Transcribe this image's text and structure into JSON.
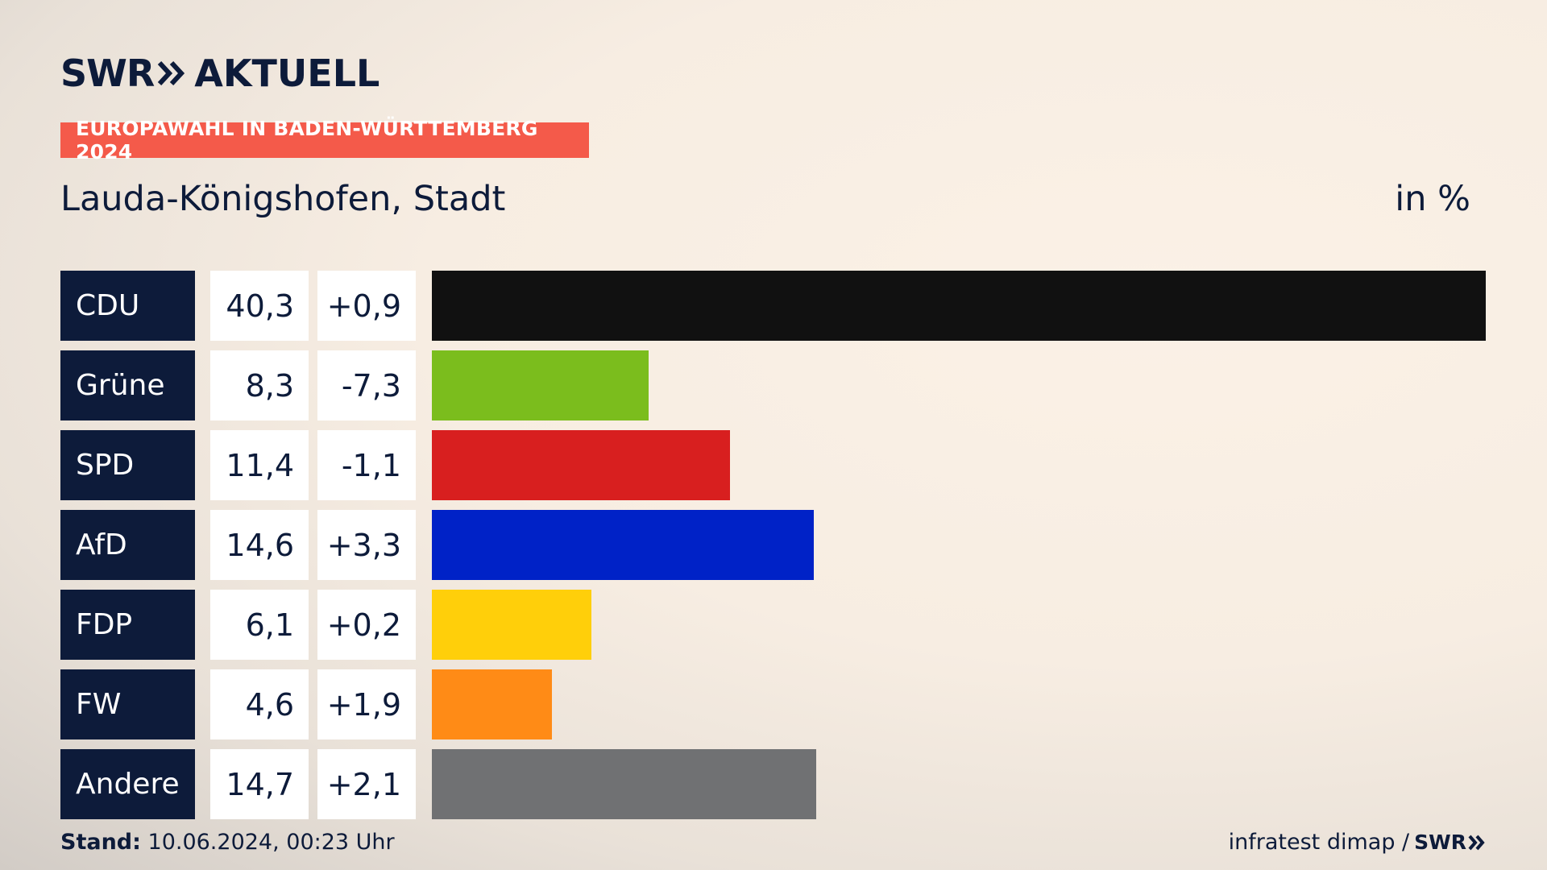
{
  "brand": {
    "swr": "SWR",
    "aktuell": "AKTUELL"
  },
  "tag": "EUROPAWAHL IN BADEN-WÜRTTEMBERG 2024",
  "region": "Lauda-Königshofen, Stadt",
  "unit": "in %",
  "footer": {
    "stand_label": "Stand:",
    "stand_value": "10.06.2024, 00:23 Uhr",
    "source": "infratest dimap /",
    "source_brand": "SWR"
  },
  "chart_data": {
    "type": "bar",
    "orientation": "horizontal",
    "categories": [
      "CDU",
      "Grüne",
      "SPD",
      "AfD",
      "FDP",
      "FW",
      "Andere"
    ],
    "values": [
      40.3,
      8.3,
      11.4,
      14.6,
      6.1,
      4.6,
      14.7
    ],
    "value_labels": [
      "40,3",
      "8,3",
      "11,4",
      "14,6",
      "6,1",
      "4,6",
      "14,7"
    ],
    "changes": [
      0.9,
      -7.3,
      -1.1,
      3.3,
      0.2,
      1.9,
      2.1
    ],
    "change_labels": [
      "+0,9",
      "-7,3",
      "-1,1",
      "+3,3",
      "+0,2",
      "+1,9",
      "+2,1"
    ],
    "colors": [
      "#111111",
      "#7bbd1d",
      "#d81f1f",
      "#0022c7",
      "#ffcf0a",
      "#ff8b16",
      "#707173"
    ],
    "xlim": [
      0,
      40.3
    ],
    "grid": false,
    "legend": "none"
  }
}
